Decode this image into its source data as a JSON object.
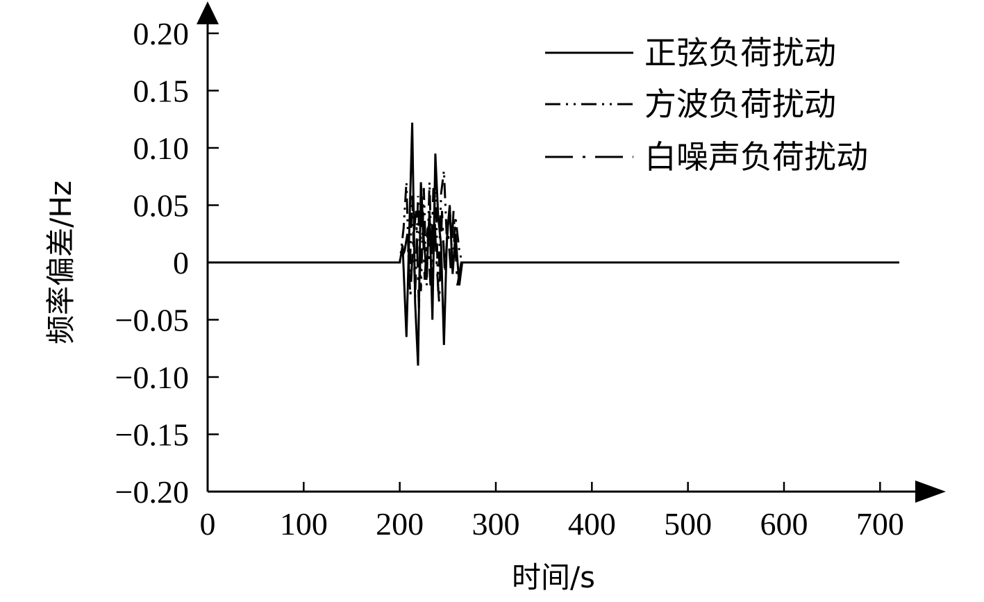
{
  "chart_data": {
    "type": "line",
    "title": "",
    "xlabel": "时间/s",
    "ylabel": "频率偏差/Hz",
    "xlim": [
      0,
      720
    ],
    "ylim": [
      -0.2,
      0.2
    ],
    "xticks": [
      0,
      100,
      200,
      300,
      400,
      500,
      600,
      700
    ],
    "xtick_labels": [
      "0",
      "100",
      "200",
      "300",
      "400",
      "500",
      "600",
      "700"
    ],
    "yticks": [
      0.2,
      0.15,
      0.1,
      0.05,
      0,
      -0.05,
      -0.1,
      -0.15,
      -0.2
    ],
    "ytick_labels": [
      "0.20",
      "0.15",
      "0.10",
      "0.05",
      "0",
      "−0.05",
      "−0.10",
      "−0.15",
      "−0.20"
    ],
    "grid": false,
    "legend_position": "top-right",
    "series": [
      {
        "name": "正弦负荷扰动",
        "style": "solid",
        "color": "#000000",
        "x": [
          0,
          200,
          203,
          207,
          210,
          213,
          216,
          219,
          222,
          225,
          228,
          231,
          234,
          237,
          240,
          243,
          246,
          249,
          252,
          255,
          258,
          262,
          265,
          300,
          720
        ],
        "y": [
          0,
          0,
          0.015,
          -0.065,
          0.03,
          0.122,
          -0.035,
          -0.09,
          0.07,
          0.02,
          -0.01,
          0.045,
          -0.05,
          0.095,
          0.04,
          0.015,
          -0.072,
          0.02,
          0.05,
          -0.01,
          0.025,
          -0.02,
          0,
          0,
          0
        ]
      },
      {
        "name": "方波负荷扰动",
        "style": "dash-dot-dot",
        "color": "#000000",
        "x": [
          0,
          200,
          204,
          207,
          210,
          213,
          216,
          219,
          222,
          225,
          228,
          231,
          234,
          237,
          240,
          243,
          246,
          249,
          252,
          255,
          258,
          262,
          265,
          300,
          720
        ],
        "y": [
          0,
          0,
          0.03,
          0.07,
          -0.02,
          0.06,
          -0.03,
          0.058,
          -0.025,
          0.065,
          -0.02,
          0.07,
          -0.03,
          0.075,
          -0.025,
          0.06,
          0.08,
          0.02,
          0.05,
          -0.005,
          0.04,
          0.01,
          0,
          0,
          0
        ]
      },
      {
        "name": "白噪声负荷扰动",
        "style": "long-dash-dot",
        "color": "#000000",
        "x": [
          0,
          200,
          205,
          208,
          211,
          214,
          217,
          220,
          223,
          226,
          229,
          232,
          235,
          238,
          241,
          244,
          247,
          250,
          253,
          256,
          260,
          264,
          300,
          720
        ],
        "y": [
          0,
          0,
          0.01,
          0.025,
          -0.03,
          0.02,
          0.045,
          -0.04,
          0.055,
          -0.015,
          0.03,
          -0.02,
          0.065,
          0.005,
          -0.035,
          0.045,
          -0.01,
          0.03,
          -0.005,
          0.045,
          -0.02,
          0,
          0,
          0
        ]
      }
    ]
  }
}
